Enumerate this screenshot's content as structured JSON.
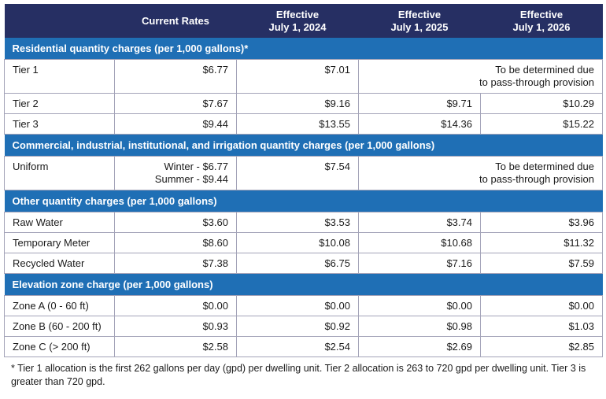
{
  "colors": {
    "header": "#262f63",
    "section": "#1f6fb5",
    "border": "#a3a3b8"
  },
  "headers": [
    "",
    "Current Rates",
    "Effective\nJuly 1, 2024",
    "Effective\nJuly 1, 2025",
    "Effective\nJuly 1, 2026"
  ],
  "header_lines": {
    "h1": "Current Rates",
    "h2a": "Effective",
    "h2b": "July 1, 2024",
    "h3a": "Effective",
    "h3b": "July 1, 2025",
    "h4a": "Effective",
    "h4b": "July 1, 2026"
  },
  "tbd": {
    "line1": "To be determined due",
    "line2": "to pass-through provision"
  },
  "sections": [
    {
      "title": "Residential quantity charges (per 1,000 gallons)*",
      "rows": [
        {
          "label": "Tier 1",
          "v": [
            "$6.77",
            "$7.01"
          ]
        },
        {
          "label": "Tier 2",
          "v": [
            "$7.67",
            "$9.16",
            "$9.71",
            "$10.29"
          ]
        },
        {
          "label": "Tier 3",
          "v": [
            "$9.44",
            "$13.55",
            "$14.36",
            "$15.22"
          ]
        }
      ]
    },
    {
      "title": "Commercial, industrial, institutional, and irrigation quantity charges (per 1,000 gallons)",
      "rows": [
        {
          "label": "Uniform",
          "v": [
            "Winter - $6.77",
            "$7.54"
          ],
          "v_line2": "Summer - $9.44"
        }
      ]
    },
    {
      "title": "Other quantity charges (per 1,000 gallons)",
      "rows": [
        {
          "label": "Raw Water",
          "v": [
            "$3.60",
            "$3.53",
            "$3.74",
            "$3.96"
          ]
        },
        {
          "label": "Temporary Meter",
          "v": [
            "$8.60",
            "$10.08",
            "$10.68",
            "$11.32"
          ]
        },
        {
          "label": "Recycled Water",
          "v": [
            "$7.38",
            "$6.75",
            "$7.16",
            "$7.59"
          ]
        }
      ]
    },
    {
      "title": "Elevation zone charge (per 1,000 gallons)",
      "rows": [
        {
          "label": "Zone A (0 - 60 ft)",
          "v": [
            "$0.00",
            "$0.00",
            "$0.00",
            "$0.00"
          ]
        },
        {
          "label": "Zone B (60 - 200 ft)",
          "v": [
            "$0.93",
            "$0.92",
            "$0.98",
            "$1.03"
          ]
        },
        {
          "label": "Zone C (> 200 ft)",
          "v": [
            "$2.58",
            "$2.54",
            "$2.69",
            "$2.85"
          ]
        }
      ]
    }
  ],
  "footnote": "* Tier 1 allocation is the first 262 gallons per day (gpd) per dwelling unit. Tier 2 allocation is 263 to 720 gpd per dwelling unit. Tier 3 is greater than 720 gpd."
}
